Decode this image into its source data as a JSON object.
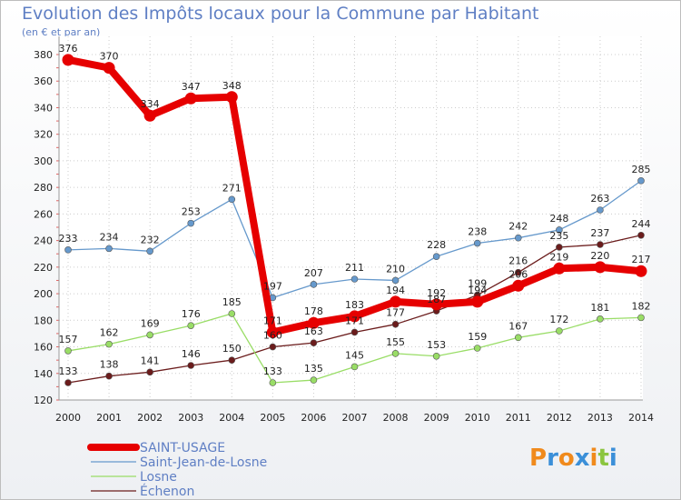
{
  "title": "Evolution des Impôts locaux pour la Commune par Habitant",
  "subtitle": "(en € et par an)",
  "logo": {
    "text": "Proxiti",
    "letters": [
      {
        "ch": "P",
        "color": "#f08a1c"
      },
      {
        "ch": "r",
        "color": "#3b8fd8"
      },
      {
        "ch": "o",
        "color": "#f08a1c"
      },
      {
        "ch": "x",
        "color": "#3b8fd8"
      },
      {
        "ch": "i",
        "color": "#f08a1c"
      },
      {
        "ch": "t",
        "color": "#8bc53f"
      },
      {
        "ch": "i",
        "color": "#3b8fd8"
      }
    ]
  },
  "chart_data": {
    "type": "line",
    "x": [
      "2000",
      "2001",
      "2002",
      "2003",
      "2004",
      "2005",
      "2006",
      "2007",
      "2008",
      "2009",
      "2010",
      "2011",
      "2012",
      "2013",
      "2014"
    ],
    "ylim": [
      120,
      380
    ],
    "yticks": [
      120,
      140,
      160,
      180,
      200,
      220,
      240,
      260,
      280,
      300,
      320,
      340,
      360,
      380
    ],
    "grid": true,
    "legend_position": "bottom-left",
    "series": [
      {
        "name": "SAINT-USAGE",
        "color": "#e60000",
        "values": [
          376,
          370,
          334,
          347,
          348,
          171,
          178,
          183,
          194,
          192,
          194,
          206,
          219,
          220,
          217
        ],
        "labels": [
          "376",
          "370",
          "334",
          "347",
          "348",
          "171",
          "178",
          "183",
          "194",
          "192",
          "194",
          "206",
          "219",
          "220",
          "217"
        ]
      },
      {
        "name": "Saint-Jean-de-Losne",
        "color": "#6699cc",
        "values": [
          233,
          234,
          232,
          253,
          271,
          197,
          207,
          211,
          210,
          228,
          238,
          242,
          248,
          263,
          285
        ],
        "labels": [
          "233",
          "234",
          "232",
          "253",
          "271",
          "197",
          "207",
          "211",
          "210",
          "228",
          "238",
          "242",
          "248",
          "263",
          "285"
        ]
      },
      {
        "name": "Losne",
        "color": "#99dd66",
        "values": [
          157,
          162,
          169,
          176,
          185,
          133,
          135,
          145,
          155,
          153,
          159,
          167,
          172,
          181,
          182
        ],
        "labels": [
          "157",
          "162",
          "169",
          "176",
          "185",
          "133",
          "135",
          "145",
          "155",
          "153",
          "159",
          "167",
          "172",
          "181",
          "182"
        ]
      },
      {
        "name": "Échenon",
        "color": "#6b1c1c",
        "values": [
          133,
          138,
          141,
          146,
          150,
          160,
          163,
          171,
          177,
          187,
          199,
          216,
          235,
          237,
          244
        ],
        "labels": [
          "133",
          "138",
          "141",
          "146",
          "150",
          "160",
          "163",
          "171",
          "177",
          "187",
          "199",
          "216",
          "235",
          "237",
          "244"
        ]
      }
    ]
  }
}
